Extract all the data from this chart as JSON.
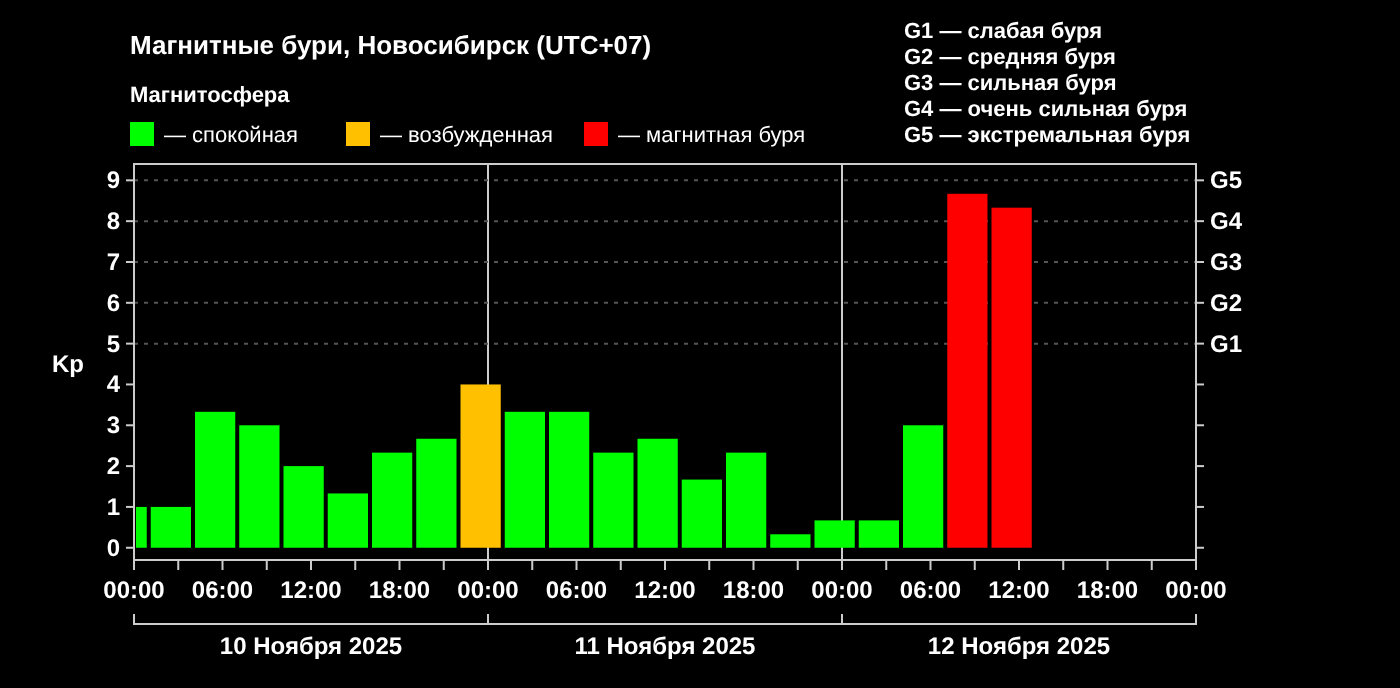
{
  "chart_data": {
    "type": "bar",
    "title": "Магнитные бури, Новосибирск (UTC+07)",
    "ylabel": "Kp",
    "legend_title": "Магнитосфера",
    "legend": "top left",
    "x": [
      "2025-11-10T00:30",
      "2025-11-10T02:30",
      "2025-11-10T05:30",
      "2025-11-10T08:30",
      "2025-11-10T11:30",
      "2025-11-10T14:30",
      "2025-11-10T17:30",
      "2025-11-10T20:30",
      "2025-11-10T23:30",
      "2025-11-11T02:30",
      "2025-11-11T05:30",
      "2025-11-11T08:30",
      "2025-11-11T11:30",
      "2025-11-11T14:30",
      "2025-11-11T17:30",
      "2025-11-11T20:30",
      "2025-11-11T23:30",
      "2025-11-12T02:30",
      "2025-11-12T05:30",
      "2025-11-12T08:30",
      "2025-11-12T11:30"
    ],
    "series": [
      {
        "name": "— спокойная",
        "color": "#00ff00",
        "values": [
          1,
          1,
          3.33,
          3,
          2,
          1.33,
          2.33,
          2.67,
          null,
          3.33,
          3.33,
          2.33,
          2.67,
          1.67,
          2.33,
          0.33,
          0.67,
          0.67,
          3,
          null,
          null
        ]
      },
      {
        "name": "— возбужденная",
        "color": "#ffc000",
        "values": [
          null,
          null,
          null,
          null,
          null,
          null,
          null,
          null,
          4,
          null,
          null,
          null,
          null,
          null,
          null,
          null,
          null,
          null,
          null,
          null,
          null
        ]
      },
      {
        "name": "— магнитная буря",
        "color": "#ff0000",
        "values": [
          null,
          null,
          null,
          null,
          null,
          null,
          null,
          null,
          null,
          null,
          null,
          null,
          null,
          null,
          null,
          null,
          null,
          null,
          null,
          8.67,
          8.33
        ]
      }
    ],
    "xlim": [
      "2025-11-10T00:00",
      "2025-11-13T00:00"
    ],
    "xticks": [
      {
        "value": "2025-11-10T00:00",
        "label": "00:00"
      },
      {
        "value": "2025-11-10T03:00",
        "label": null
      },
      {
        "value": "2025-11-10T06:00",
        "label": "06:00"
      },
      {
        "value": "2025-11-10T09:00",
        "label": null
      },
      {
        "value": "2025-11-10T12:00",
        "label": "12:00"
      },
      {
        "value": "2025-11-10T15:00",
        "label": null
      },
      {
        "value": "2025-11-10T18:00",
        "label": "18:00"
      },
      {
        "value": "2025-11-10T21:00",
        "label": null
      },
      {
        "value": "2025-11-11T00:00",
        "label": "00:00"
      },
      {
        "value": "2025-11-11T03:00",
        "label": null
      },
      {
        "value": "2025-11-11T06:00",
        "label": "06:00"
      },
      {
        "value": "2025-11-11T09:00",
        "label": null
      },
      {
        "value": "2025-11-11T12:00",
        "label": "12:00"
      },
      {
        "value": "2025-11-11T15:00",
        "label": null
      },
      {
        "value": "2025-11-11T18:00",
        "label": "18:00"
      },
      {
        "value": "2025-11-11T21:00",
        "label": null
      },
      {
        "value": "2025-11-12T00:00",
        "label": "00:00"
      },
      {
        "value": "2025-11-12T03:00",
        "label": null
      },
      {
        "value": "2025-11-12T06:00",
        "label": "06:00"
      },
      {
        "value": "2025-11-12T09:00",
        "label": null
      },
      {
        "value": "2025-11-12T12:00",
        "label": "12:00"
      },
      {
        "value": "2025-11-12T15:00",
        "label": null
      },
      {
        "value": "2025-11-12T18:00",
        "label": "18:00"
      },
      {
        "value": "2025-11-12T21:00",
        "label": null
      },
      {
        "value": "2025-11-13T00:00",
        "label": "00:00"
      }
    ],
    "ylim": [
      -0.3,
      9.4
    ],
    "yticks": [
      0,
      1,
      2,
      3,
      4,
      5,
      6,
      7,
      8,
      9
    ],
    "ref_lines": [
      {
        "axis": "x",
        "value": "2025-11-11T00:00",
        "color": "#cccccc",
        "line_style": "solid"
      },
      {
        "axis": "x",
        "value": "2025-11-12T00:00",
        "color": "#cccccc",
        "line_style": "solid"
      },
      {
        "axis": "y",
        "value": 5,
        "label": "G1",
        "color": "#555555",
        "line_style": "dotted"
      },
      {
        "axis": "y",
        "value": 6,
        "label": "G2",
        "color": "#555555",
        "line_style": "dotted"
      },
      {
        "axis": "y",
        "value": 7,
        "label": "G3",
        "color": "#555555",
        "line_style": "dotted"
      },
      {
        "axis": "y",
        "value": 8,
        "label": "G4",
        "color": "#555555",
        "line_style": "dotted"
      },
      {
        "axis": "y",
        "value": 9,
        "label": "G5",
        "color": "#555555",
        "line_style": "dotted"
      }
    ],
    "annotations": [
      "G1 — слабая буря",
      "G2 — средняя буря",
      "G3 — сильная буря",
      "G4 — очень сильная буря",
      "G5 — экстремальная буря",
      "10 Ноября 2025",
      "11 Ноября 2025",
      "12 Ноября 2025"
    ]
  }
}
